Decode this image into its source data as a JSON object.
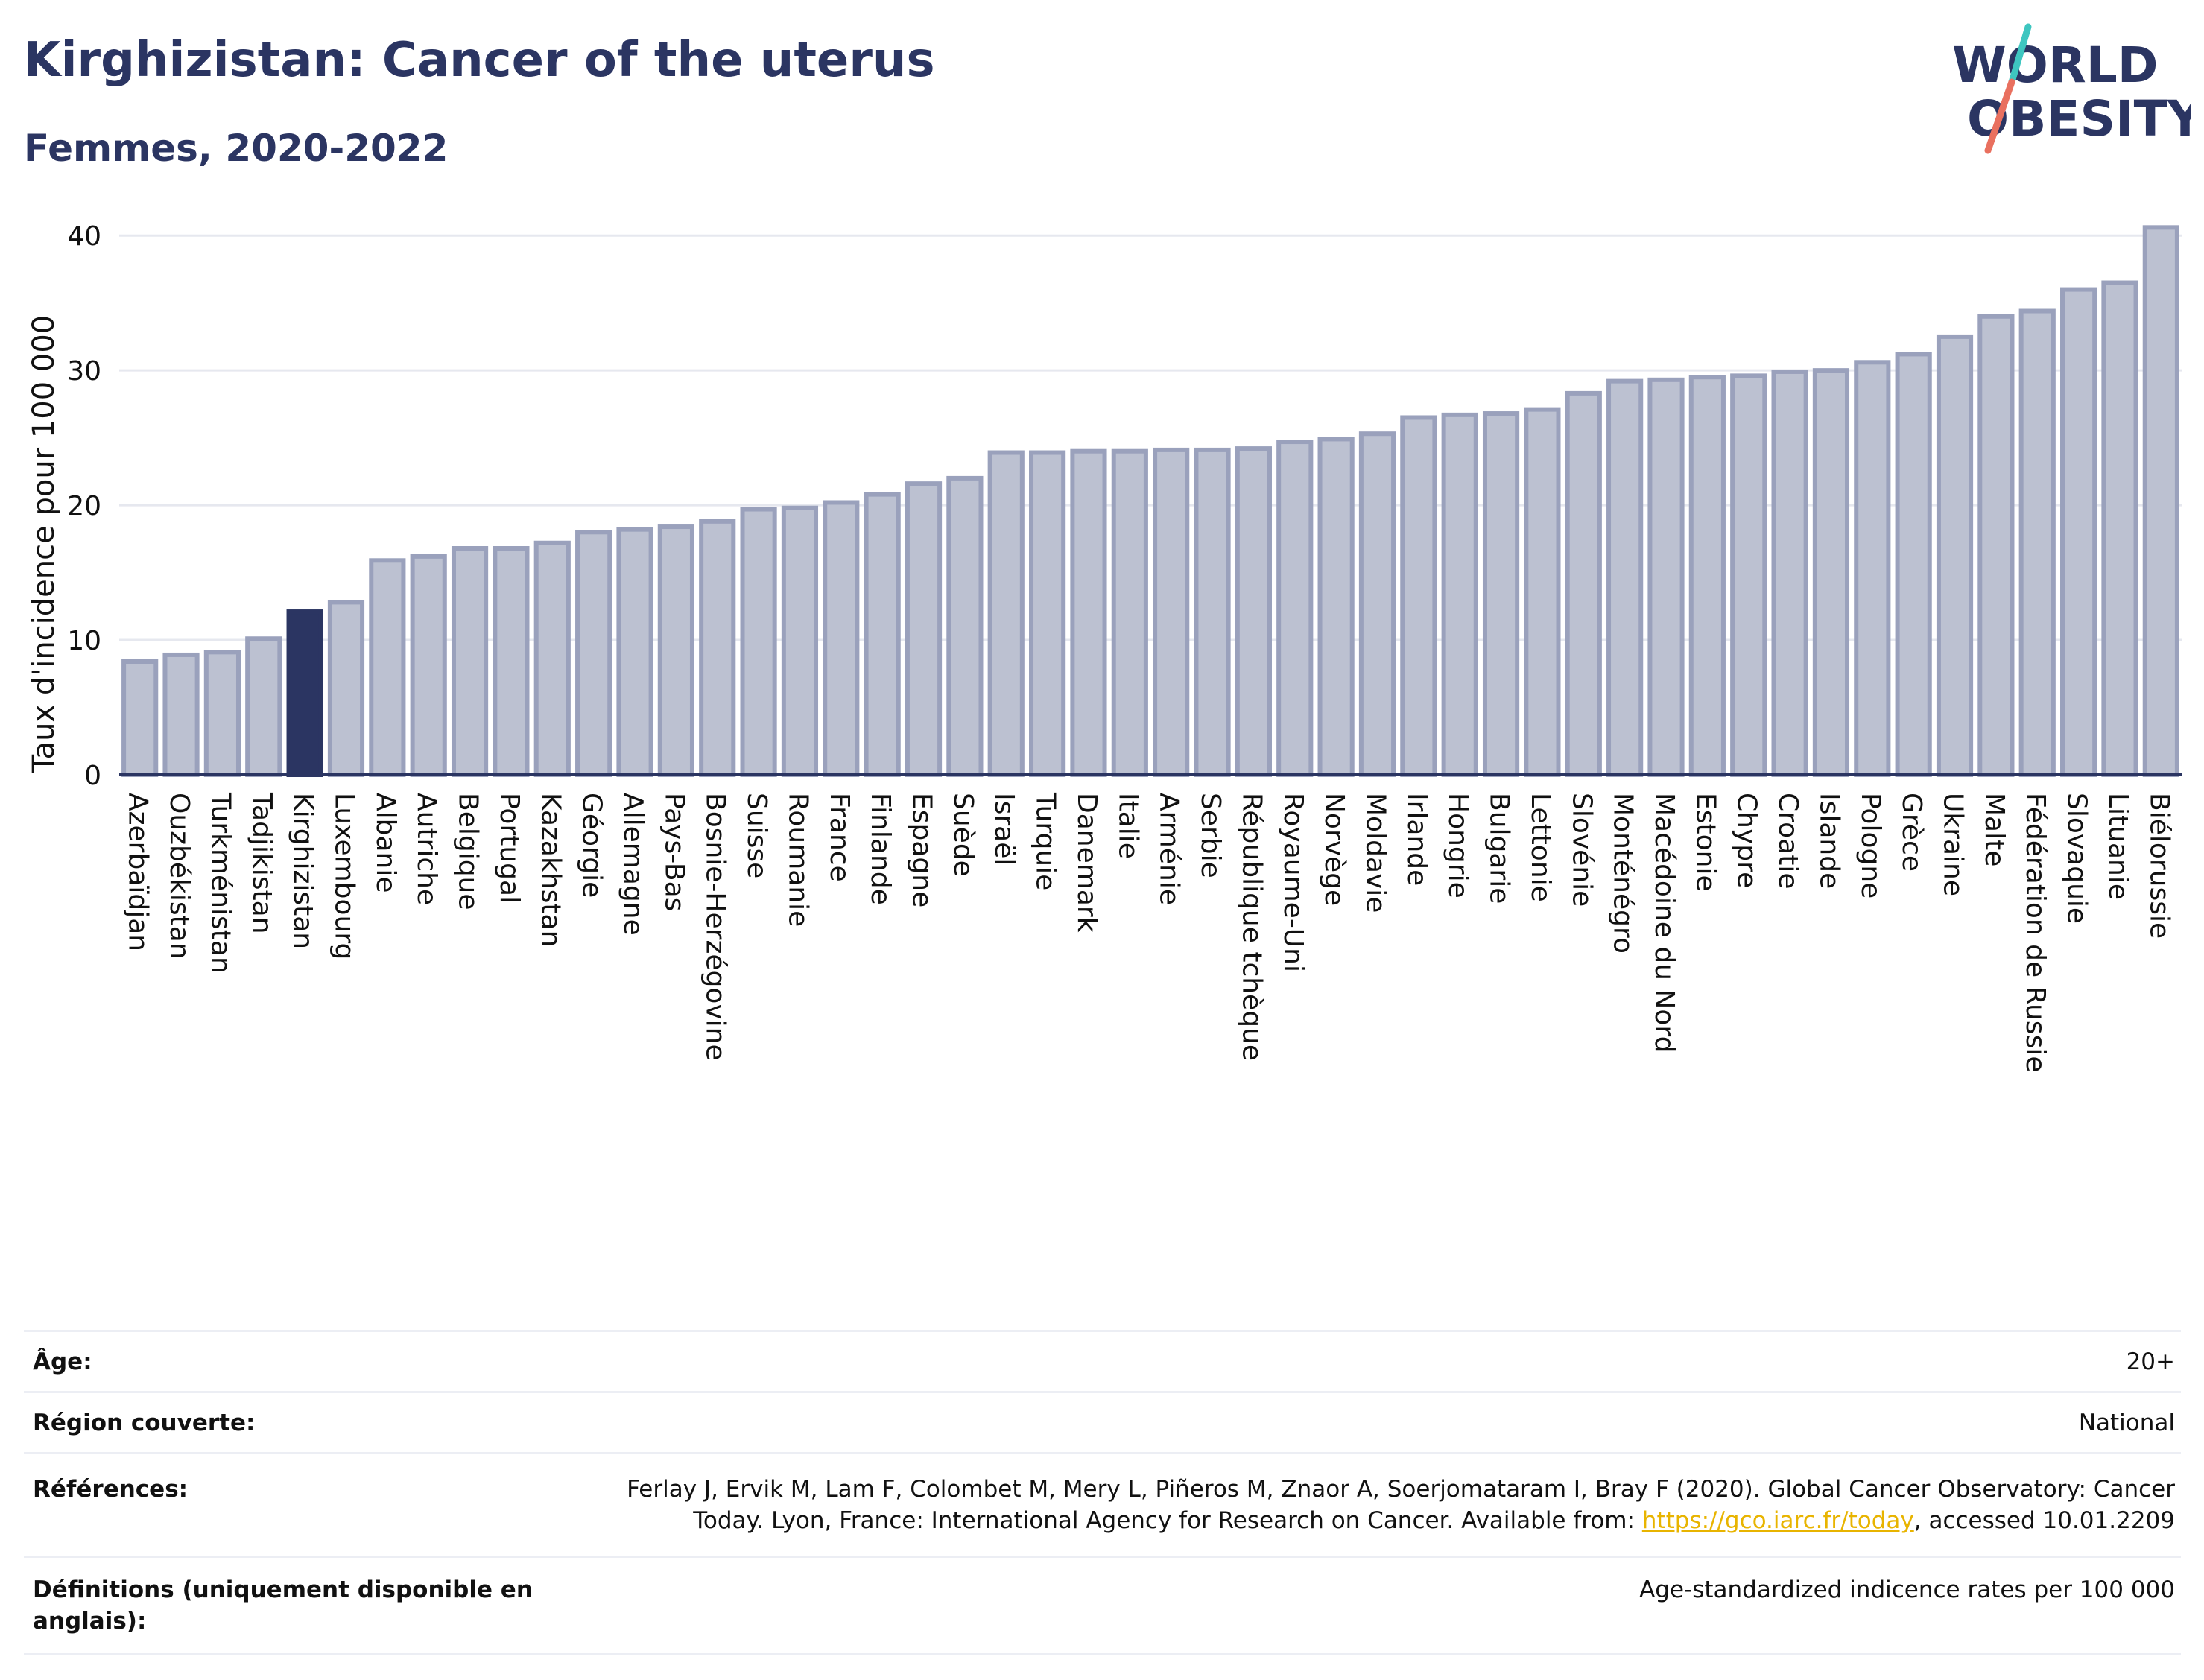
{
  "header": {
    "title": "Kirghizistan: Cancer of the uterus",
    "subtitle": "Femmes, 2020-2022"
  },
  "logo": {
    "line1": "WORLD",
    "line2": "OBESITY",
    "colors": {
      "text": "#2b3562",
      "slash_top": "#3ec6c0",
      "slash_bottom": "#e9705f"
    }
  },
  "colors": {
    "bar_fill": "#bcc1d1",
    "bar_stroke": "#9aa1bc",
    "highlight_fill": "#2b3562",
    "axis": "#2b3562",
    "grid": "#e6e8ef"
  },
  "chart_data": {
    "type": "bar",
    "ylabel": "Taux d'incidence pour 100 000",
    "ylim": [
      0,
      42
    ],
    "yticks": [
      0,
      10,
      20,
      30,
      40
    ],
    "grid": true,
    "highlight": "Kirghizistan",
    "categories": [
      "Azerbaïdjan",
      "Ouzbékistan",
      "Turkménistan",
      "Tadjikistan",
      "Kirghizistan",
      "Luxembourg",
      "Albanie",
      "Autriche",
      "Belgique",
      "Portugal",
      "Kazakhstan",
      "Géorgie",
      "Allemagne",
      "Pays-Bas",
      "Bosnie-Herzégovine",
      "Suisse",
      "Roumanie",
      "France",
      "Finlande",
      "Espagne",
      "Suède",
      "Israël",
      "Turquie",
      "Danemark",
      "Italie",
      "Arménie",
      "Serbie",
      "République tchèque",
      "Royaume-Uni",
      "Norvège",
      "Moldavie",
      "Irlande",
      "Hongrie",
      "Bulgarie",
      "Lettonie",
      "Slovénie",
      "Monténégro",
      "Macédoine du Nord",
      "Estonie",
      "Chypre",
      "Croatie",
      "Islande",
      "Pologne",
      "Grèce",
      "Ukraine",
      "Malte",
      "Fédération de Russie",
      "Slovaquie",
      "Lituanie",
      "Biélorussie"
    ],
    "values": [
      8.4,
      8.9,
      9.1,
      10.1,
      12.1,
      12.8,
      15.9,
      16.2,
      16.8,
      16.8,
      17.2,
      18.0,
      18.2,
      18.4,
      18.8,
      19.7,
      19.8,
      20.2,
      20.8,
      21.6,
      22.0,
      23.9,
      23.9,
      24.0,
      24.0,
      24.1,
      24.1,
      24.2,
      24.7,
      24.9,
      25.3,
      26.5,
      26.7,
      26.8,
      27.1,
      28.3,
      29.2,
      29.3,
      29.5,
      29.6,
      29.9,
      30.0,
      30.6,
      31.2,
      32.5,
      34.0,
      34.4,
      36.0,
      36.5,
      40.6
    ]
  },
  "info": {
    "age_label": "Âge:",
    "age_value": "20+",
    "region_label": "Région couverte:",
    "region_value": "National",
    "references_label": "Références:",
    "references_text_1": "Ferlay J, Ervik M, Lam F, Colombet M, Mery L, Piñeros M, Znaor A, Soerjomataram I, Bray F (2020). Global Cancer Observatory: Cancer Today. Lyon, France: International Agency for Research on Cancer. Available from: ",
    "references_link": "https://gco.iarc.fr/today",
    "references_text_2": ", accessed 10.01.2209",
    "definitions_label": "Définitions (uniquement disponible en anglais):",
    "definitions_value": "Age-standardized indicence rates per 100 000"
  }
}
